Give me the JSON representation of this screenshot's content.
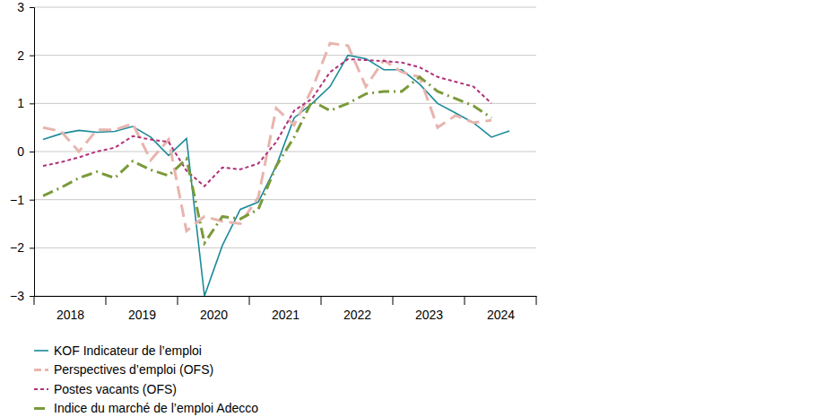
{
  "chart_data": {
    "type": "line",
    "x": [
      2018.125,
      2018.375,
      2018.625,
      2018.875,
      2019.125,
      2019.375,
      2019.625,
      2019.875,
      2020.125,
      2020.375,
      2020.625,
      2020.875,
      2021.125,
      2021.375,
      2021.625,
      2021.875,
      2022.125,
      2022.375,
      2022.625,
      2022.875,
      2023.125,
      2023.375,
      2023.625,
      2023.875,
      2024.125,
      2024.375,
      2024.625
    ],
    "xlim": [
      2018,
      2025
    ],
    "xticks": [
      {
        "value": 2018.5,
        "label": "2018"
      },
      {
        "value": 2019.5,
        "label": "2019"
      },
      {
        "value": 2020.5,
        "label": "2020"
      },
      {
        "value": 2021.5,
        "label": "2021"
      },
      {
        "value": 2022.5,
        "label": "2022"
      },
      {
        "value": 2023.5,
        "label": "2023"
      },
      {
        "value": 2024.5,
        "label": "2024"
      }
    ],
    "ylim": [
      -3,
      3
    ],
    "yticks": [
      {
        "value": -3,
        "label": "−3"
      },
      {
        "value": -2,
        "label": "−2"
      },
      {
        "value": -1,
        "label": "−1"
      },
      0,
      1,
      2,
      3
    ],
    "grid": true,
    "legend": "bottom",
    "series": [
      {
        "name": "KOF Indicateur de l’emploi",
        "color": "#1b8a9a",
        "line_style": "solid",
        "marker": "none",
        "values": [
          0.25,
          0.37,
          0.44,
          0.4,
          0.42,
          0.52,
          0.3,
          -0.08,
          0.27,
          -3.0,
          -1.95,
          -1.2,
          -1.05,
          -0.3,
          0.7,
          1.0,
          1.35,
          2.0,
          1.93,
          1.7,
          1.7,
          1.4,
          1.0,
          0.8,
          0.6,
          0.3,
          0.43
        ]
      },
      {
        "name": "Perspectives d’emploi (OFS)",
        "color": "#e8b4ae",
        "line_style": "dashed",
        "marker": "none",
        "values": [
          0.5,
          0.42,
          0.0,
          0.45,
          0.45,
          0.58,
          -0.18,
          0.25,
          -1.65,
          -1.35,
          -1.45,
          -1.5,
          -0.95,
          0.9,
          0.55,
          1.3,
          2.25,
          2.2,
          1.35,
          1.9,
          1.65,
          1.55,
          0.5,
          0.75,
          0.6,
          0.65,
          null
        ]
      },
      {
        "name": "Postes vacants (OFS)",
        "color": "#b0307a",
        "line_style": "dotted",
        "marker": "none",
        "values": [
          -0.3,
          -0.22,
          -0.12,
          0.0,
          0.08,
          0.32,
          0.25,
          0.2,
          -0.4,
          -0.72,
          -0.33,
          -0.37,
          -0.25,
          0.2,
          0.85,
          1.1,
          1.65,
          1.92,
          1.9,
          1.88,
          1.85,
          1.75,
          1.55,
          1.45,
          1.35,
          1.0,
          null
        ]
      },
      {
        "name": "Indice du marché de l’emploi Adecco",
        "color": "#7a9a3a",
        "line_style": "dashdot",
        "marker": "none",
        "values": [
          -0.92,
          -0.75,
          -0.55,
          -0.42,
          -0.55,
          -0.2,
          -0.38,
          -0.5,
          -0.15,
          -1.9,
          -1.35,
          -1.4,
          -1.2,
          -0.3,
          0.3,
          1.05,
          0.85,
          1.0,
          1.2,
          1.25,
          1.25,
          1.55,
          1.25,
          1.1,
          0.95,
          0.7,
          null
        ]
      }
    ]
  }
}
